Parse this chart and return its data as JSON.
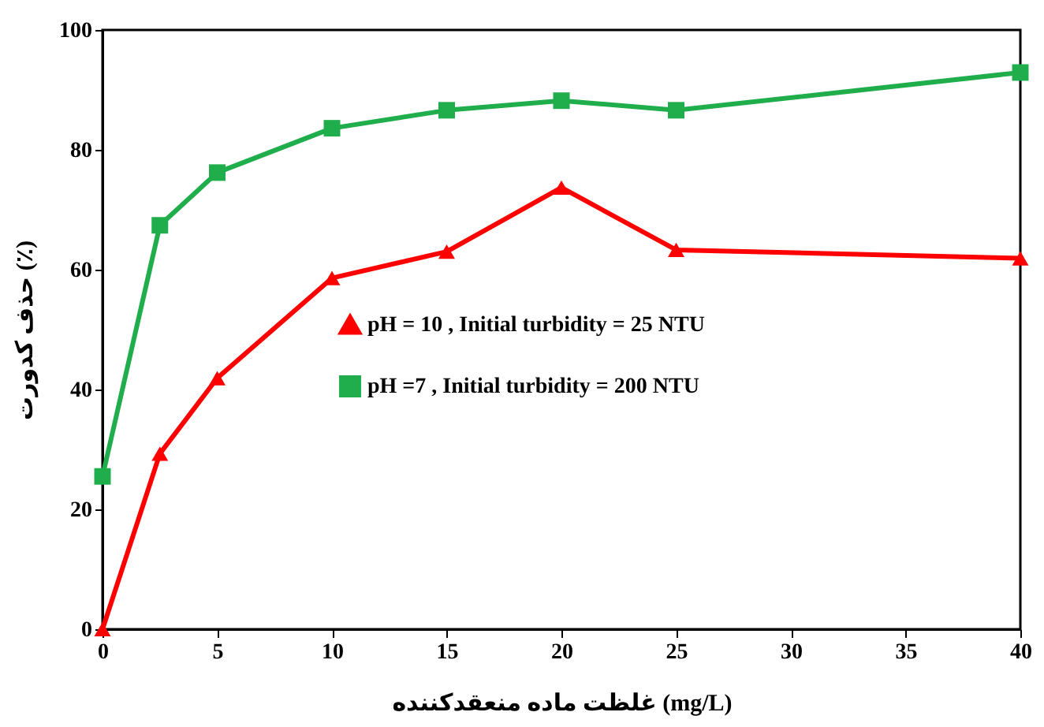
{
  "chart_data": {
    "type": "line",
    "xlabel": "غلظت ماده منعقدکننده (mg/L)",
    "ylabel": "حذف کدورت (٪)",
    "x": [
      0,
      2.5,
      5,
      10,
      15,
      20,
      25,
      40
    ],
    "series": [
      {
        "name": "pH = 10 , Initial turbidity = 25 NTU",
        "color": "#ff0000",
        "marker": "triangle",
        "values": [
          0,
          29.3,
          41.9,
          58.6,
          63,
          73.7,
          63.3,
          61.9
        ]
      },
      {
        "name": "pH =7 , Initial turbidity = 200 NTU",
        "color": "#1fae4b",
        "marker": "square",
        "values": [
          25.5,
          67.4,
          76.2,
          83.6,
          86.6,
          88.2,
          86.6,
          92.9
        ]
      }
    ],
    "xlim": [
      0,
      40
    ],
    "xticks": [
      0,
      5,
      10,
      15,
      20,
      25,
      30,
      35,
      40
    ],
    "ylim": [
      0,
      100
    ],
    "yticks": [
      0,
      20,
      40,
      60,
      80,
      100
    ],
    "grid": false,
    "legend": "center",
    "line_style": "solid"
  }
}
